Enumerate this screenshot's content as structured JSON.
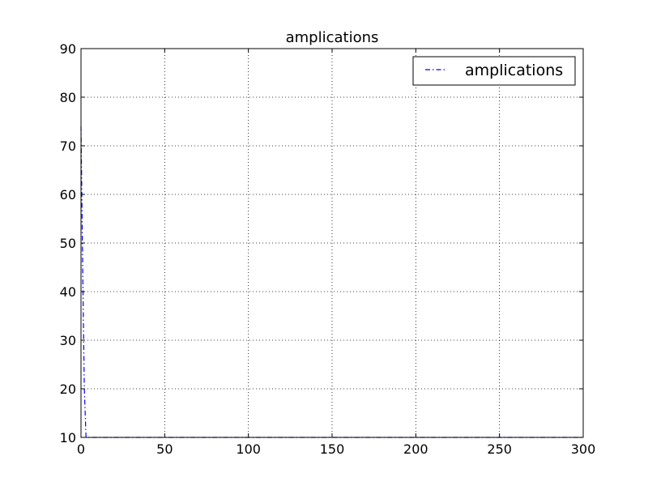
{
  "chart_data": {
    "type": "line",
    "title": "amplications",
    "xlabel": "",
    "ylabel": "",
    "xlim": [
      0,
      300
    ],
    "ylim": [
      10,
      90
    ],
    "xticks": [
      0,
      50,
      100,
      150,
      200,
      250,
      300
    ],
    "yticks": [
      10,
      20,
      30,
      40,
      50,
      60,
      70,
      80,
      90
    ],
    "grid": true,
    "legend": {
      "position": "top-right"
    },
    "series": [
      {
        "name": "amplications",
        "color": "#0000ff",
        "linestyle": "dashdot",
        "x": [
          0,
          1,
          2,
          3,
          300
        ],
        "y": [
          74,
          45,
          20,
          10,
          10
        ]
      }
    ]
  }
}
